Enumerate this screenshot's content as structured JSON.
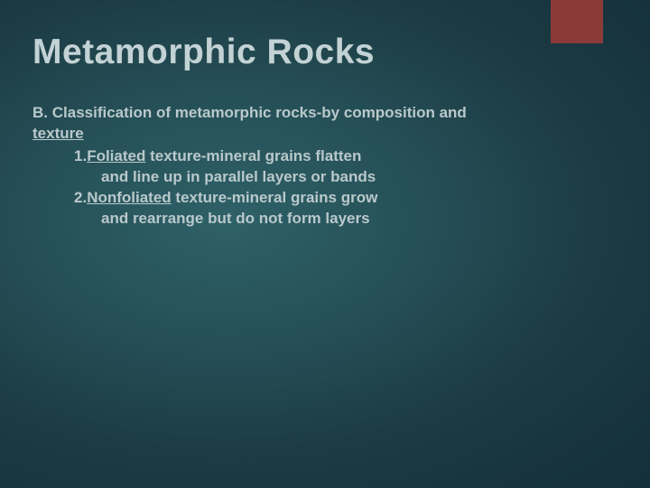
{
  "colors": {
    "accent": "#8b3a3a",
    "bg_inner": "#2f6168",
    "bg_outer": "#14303a",
    "text": "#b9c9cb",
    "title": "#c3d2d4"
  },
  "typography": {
    "title_fontsize_pt": 30,
    "body_fontsize_pt": 13,
    "font_family": "Arial",
    "weight": "bold"
  },
  "title": "Metamorphic Rocks",
  "section": {
    "prefix": "B. ",
    "heading_line1": "Classification of metamorphic rocks-by composition and",
    "heading_line2_underlined": "texture"
  },
  "items": [
    {
      "num": "1.",
      "term": "Foliated",
      "rest1": " texture-mineral grains flatten",
      "cont": "and line up in parallel layers or bands"
    },
    {
      "num": "2.",
      "term": "Nonfoliated",
      "rest1": " texture-mineral grains grow",
      "cont": "and rearrange but do not form layers"
    }
  ]
}
